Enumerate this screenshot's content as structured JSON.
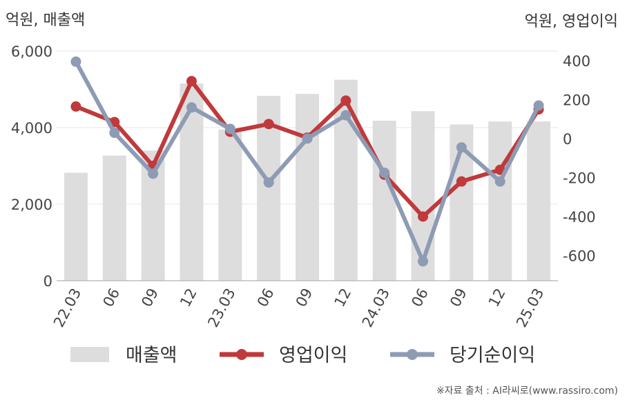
{
  "chart_data": {
    "type": "bar+line",
    "left_axis_unit": "억원, 매출액",
    "right_axis_unit": "억원, 영업이익",
    "categories": [
      "22.03",
      "06",
      "09",
      "12",
      "23.03",
      "06",
      "09",
      "12",
      "24.03",
      "06",
      "09",
      "12",
      "25.03"
    ],
    "left_ylim": [
      0,
      6000
    ],
    "left_yticks": [
      "0",
      "2,000",
      "4,000",
      "6,000"
    ],
    "left_ytick_values": [
      0,
      2000,
      4000,
      6000
    ],
    "right_ylim": [
      -700,
      450
    ],
    "right_yticks": [
      "-600",
      "-400",
      "-200",
      "0",
      "200",
      "400"
    ],
    "right_ytick_values": [
      -600,
      -400,
      -200,
      0,
      200,
      400
    ],
    "grid": true,
    "legend_position": "bottom",
    "series": [
      {
        "name": "매출액",
        "kind": "bar",
        "axis": "left",
        "color": "#dddddd",
        "values": [
          2820,
          3270,
          3400,
          5150,
          3950,
          4830,
          4880,
          5250,
          4180,
          4430,
          4080,
          4160,
          4160
        ]
      },
      {
        "name": "영업이익",
        "kind": "line",
        "axis": "right",
        "color": "#c0393b",
        "values": [
          165,
          85,
          -140,
          295,
          35,
          75,
          5,
          195,
          -185,
          -400,
          -220,
          -160,
          150
        ]
      },
      {
        "name": "당기순이익",
        "kind": "line",
        "axis": "right",
        "color": "#8e9bb4",
        "values": [
          395,
          30,
          -180,
          160,
          50,
          -225,
          0,
          120,
          -175,
          -630,
          -45,
          -220,
          170
        ]
      }
    ]
  },
  "legend": {
    "revenue": "매출액",
    "operating_profit": "영업이익",
    "net_income": "당기순이익"
  },
  "source_text": "※자료 출처 : AI라씨로(www.rassiro.com)"
}
